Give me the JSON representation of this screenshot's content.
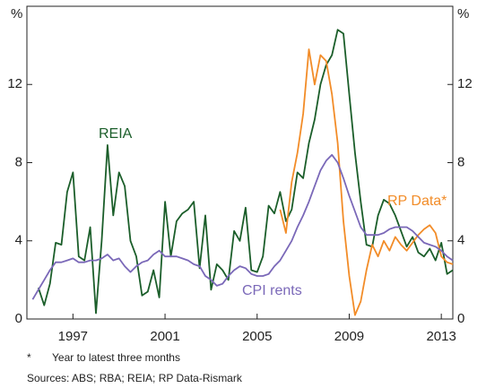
{
  "chart_data": {
    "type": "line",
    "y_unit": "%",
    "y2_unit": "%",
    "x": [
      1995.25,
      1995.5,
      1995.75,
      1996,
      1996.25,
      1996.5,
      1996.75,
      1997,
      1997.25,
      1997.5,
      1997.75,
      1998,
      1998.25,
      1998.5,
      1998.75,
      1999,
      1999.25,
      1999.5,
      1999.75,
      2000,
      2000.25,
      2000.5,
      2000.75,
      2001,
      2001.25,
      2001.5,
      2001.75,
      2002,
      2002.25,
      2002.5,
      2002.75,
      2003,
      2003.25,
      2003.5,
      2003.75,
      2004,
      2004.25,
      2004.5,
      2004.75,
      2005,
      2005.25,
      2005.5,
      2005.75,
      2006,
      2006.25,
      2006.5,
      2006.75,
      2007,
      2007.25,
      2007.5,
      2007.75,
      2008,
      2008.25,
      2008.5,
      2008.75,
      2009,
      2009.25,
      2009.5,
      2009.75,
      2010,
      2010.25,
      2010.5,
      2010.75,
      2011,
      2011.25,
      2011.5,
      2011.75,
      2012,
      2012.25,
      2012.5,
      2012.75,
      2013,
      2013.25,
      2013.5
    ],
    "series": [
      {
        "name": "REIA",
        "color": "#1b5e2a",
        "values": [
          null,
          1.6,
          0.7,
          1.8,
          3.9,
          3.8,
          6.5,
          7.5,
          3.2,
          3.0,
          4.7,
          0.3,
          4.0,
          8.9,
          5.3,
          7.5,
          6.8,
          4.0,
          3.2,
          1.2,
          1.4,
          2.5,
          1.1,
          6.0,
          3.2,
          5.0,
          5.4,
          5.6,
          6.0,
          2.6,
          5.3,
          1.5,
          2.8,
          2.5,
          2.0,
          4.5,
          4.0,
          5.7,
          2.5,
          2.4,
          3.2,
          5.8,
          5.4,
          6.5,
          5.0,
          5.6,
          7.5,
          7.2,
          9.0,
          10.2,
          12.0,
          13.0,
          13.5,
          14.8,
          14.6,
          11.5,
          8.5,
          6.0,
          3.8,
          3.7,
          5.3,
          6.1,
          5.9,
          5.3,
          4.5,
          3.7,
          4.2,
          3.4,
          3.2,
          3.6,
          3.0,
          3.9,
          2.3,
          2.5
        ]
      },
      {
        "name": "RP Data*",
        "color": "#f28c28",
        "values": [
          null,
          null,
          null,
          null,
          null,
          null,
          null,
          null,
          null,
          null,
          null,
          null,
          null,
          null,
          null,
          null,
          null,
          null,
          null,
          null,
          null,
          null,
          null,
          null,
          null,
          null,
          null,
          null,
          null,
          null,
          null,
          null,
          null,
          null,
          null,
          null,
          null,
          null,
          null,
          null,
          null,
          null,
          null,
          5.6,
          4.4,
          7.0,
          8.5,
          10.5,
          13.8,
          12.0,
          13.5,
          13.2,
          11.5,
          9.0,
          5.0,
          2.2,
          0.2,
          0.9,
          2.5,
          3.8,
          3.2,
          4.0,
          3.5,
          4.2,
          3.8,
          3.5,
          3.9,
          4.3,
          4.6,
          4.8,
          4.4,
          3.2,
          2.9,
          2.8
        ]
      },
      {
        "name": "CPI rents",
        "color": "#7a68b8",
        "values": [
          1.0,
          1.5,
          2.0,
          2.5,
          2.9,
          2.9,
          3.0,
          3.1,
          2.9,
          2.9,
          3.0,
          3.0,
          3.1,
          3.3,
          3.0,
          3.1,
          2.7,
          2.4,
          2.7,
          2.9,
          3.0,
          3.3,
          3.5,
          3.2,
          3.2,
          3.2,
          3.1,
          3.0,
          2.8,
          2.7,
          2.2,
          2.0,
          1.7,
          1.8,
          2.2,
          2.5,
          2.7,
          2.6,
          2.3,
          2.2,
          2.2,
          2.3,
          2.7,
          3.0,
          3.5,
          4.0,
          4.7,
          5.3,
          6.0,
          6.8,
          7.6,
          8.1,
          8.4,
          8.0,
          7.2,
          6.3,
          5.5,
          4.7,
          4.3,
          4.3,
          4.3,
          4.4,
          4.6,
          4.7,
          4.7,
          4.7,
          4.5,
          4.2,
          3.9,
          3.8,
          3.7,
          3.5,
          3.2,
          3.0
        ]
      }
    ],
    "xlim": [
      1995,
      2013.5
    ],
    "xticks": [
      1997,
      2001,
      2005,
      2009,
      2013
    ],
    "ylim": [
      0,
      16
    ],
    "yticks": [
      0,
      4,
      8,
      12
    ],
    "y2lim": [
      0,
      16
    ],
    "y2ticks": [
      0,
      4,
      8,
      12
    ],
    "footnote_marker": "*",
    "footnote": "Year to latest three months",
    "sources": "Sources: ABS; RBA; REIA; RP Data-Rismark"
  }
}
